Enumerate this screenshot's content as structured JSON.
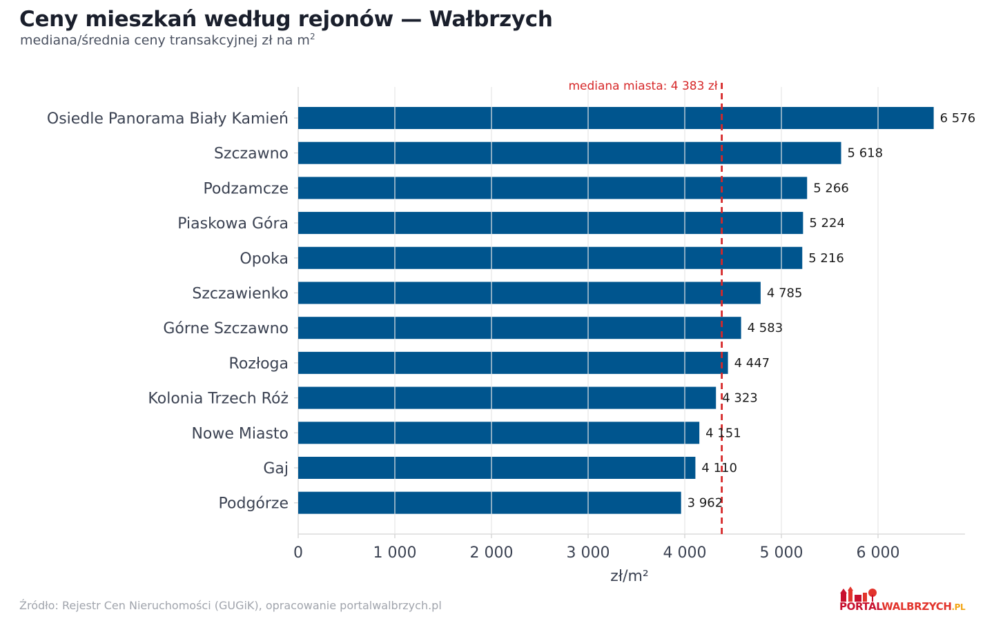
{
  "header": {
    "title": "Ceny mieszkań według rejonów — Wałbrzych",
    "subtitle_main": "mediana/średnia ceny transakcyjnej zł na m",
    "subtitle_sup": "2"
  },
  "footer": {
    "source": "Źródło: Rejestr Cen Nieruchomości (GUGiK), opracowanie portalwalbrzych.pl"
  },
  "logo": {
    "part1": "PORTAL",
    "part2": "WALBRZYCH",
    "part3": ".PL"
  },
  "colors": {
    "bar": "#00558e",
    "median_line": "#d62728",
    "grid": "#e6e6e6",
    "label": "#3b4252",
    "value_label": "#1a1a1a"
  },
  "chart_data": {
    "type": "bar",
    "orientation": "horizontal",
    "categories": [
      "Osiedle Panorama Biały Kamień",
      "Szczawno",
      "Podzamcze",
      "Piaskowa Góra",
      "Opoka",
      "Szczawienko",
      "Górne Szczawno",
      "Rozłoga",
      "Kolonia Trzech Róż",
      "Nowe Miasto",
      "Gaj",
      "Podgórze"
    ],
    "values": [
      6576,
      5618,
      5266,
      5224,
      5216,
      4785,
      4583,
      4447,
      4323,
      4151,
      4110,
      3962
    ],
    "value_labels": [
      "6 576",
      "5 618",
      "5 266",
      "5 224",
      "5 216",
      "4 785",
      "4 583",
      "4 447",
      "4 323",
      "4 151",
      "4 110",
      "3 962"
    ],
    "xlabel": "zł/m²",
    "xlim": [
      0,
      6900
    ],
    "xticks": [
      0,
      1000,
      2000,
      3000,
      4000,
      5000,
      6000
    ],
    "xtick_labels": [
      "0",
      "1 000",
      "2 000",
      "3 000",
      "4 000",
      "5 000",
      "6 000"
    ],
    "grid": "vertical",
    "reference_line": {
      "value": 4383,
      "label": "mediana miasta: 4 383 zł",
      "style": "dashed"
    }
  }
}
